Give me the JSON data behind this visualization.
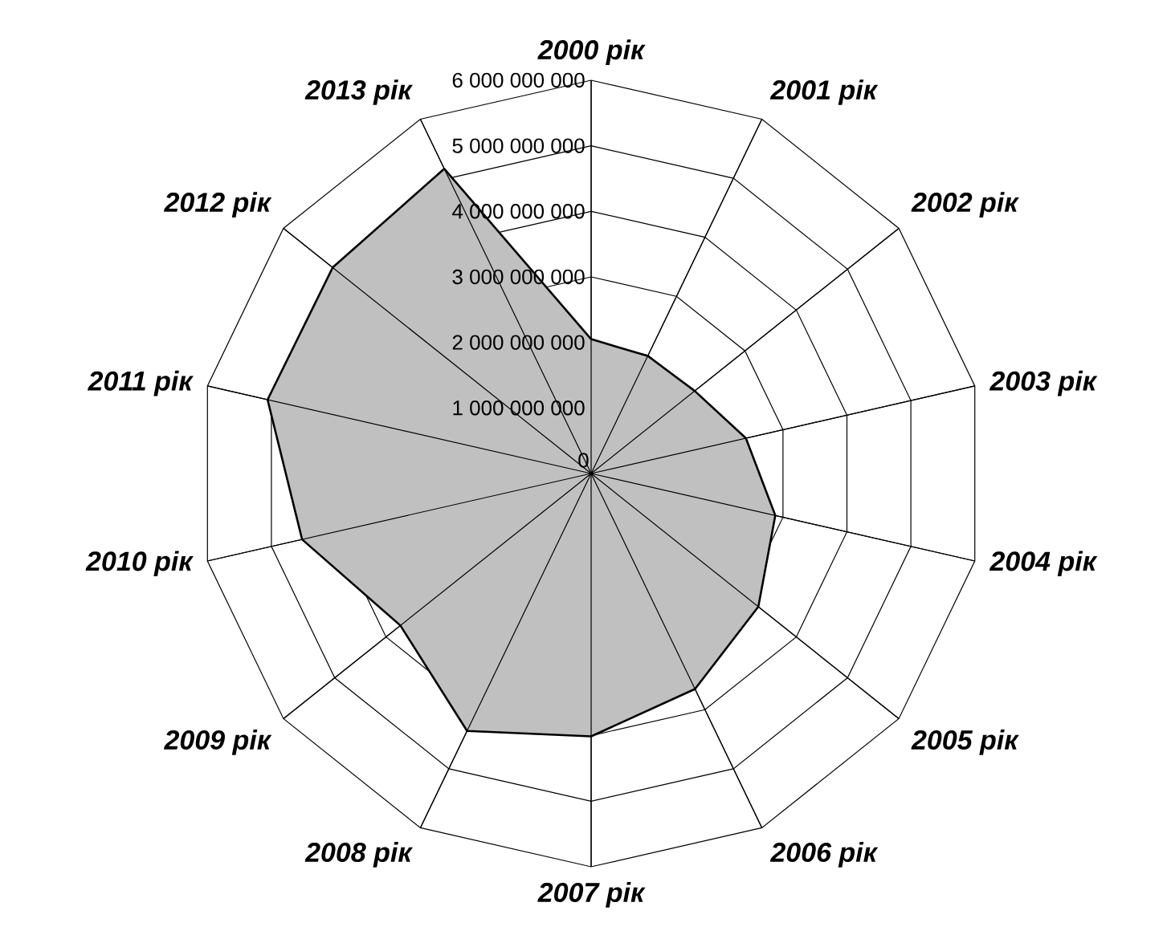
{
  "chart_data": {
    "type": "radar",
    "categories": [
      "2000 рік",
      "2001 рік",
      "2002 рік",
      "2003 рік",
      "2004 рік",
      "2005 рік",
      "2006 рік",
      "2007 рік",
      "2008 рік",
      "2009 рік",
      "2010 рік",
      "2011 рік",
      "2012 рік",
      "2013 рік"
    ],
    "series": [
      {
        "color": "#c0c0c0",
        "values": [
          2050000000,
          1990000000,
          2020000000,
          2420000000,
          2880000000,
          3260000000,
          3650000000,
          4010000000,
          4360000000,
          3720000000,
          4520000000,
          5060000000,
          5040000000,
          5160000000
        ]
      }
    ],
    "ylim": [
      0,
      6000000000
    ],
    "yticks": [
      {
        "value": 0,
        "label": "0"
      },
      {
        "value": 1000000000,
        "label": "1 000 000 000"
      },
      {
        "value": 2000000000,
        "label": "2 000 000 000"
      },
      {
        "value": 3000000000,
        "label": "3 000 000 000"
      },
      {
        "value": 4000000000,
        "label": "4 000 000 000"
      },
      {
        "value": 5000000000,
        "label": "5 000 000 000"
      },
      {
        "value": 6000000000,
        "label": "6 000 000 000"
      }
    ],
    "grid": true
  }
}
